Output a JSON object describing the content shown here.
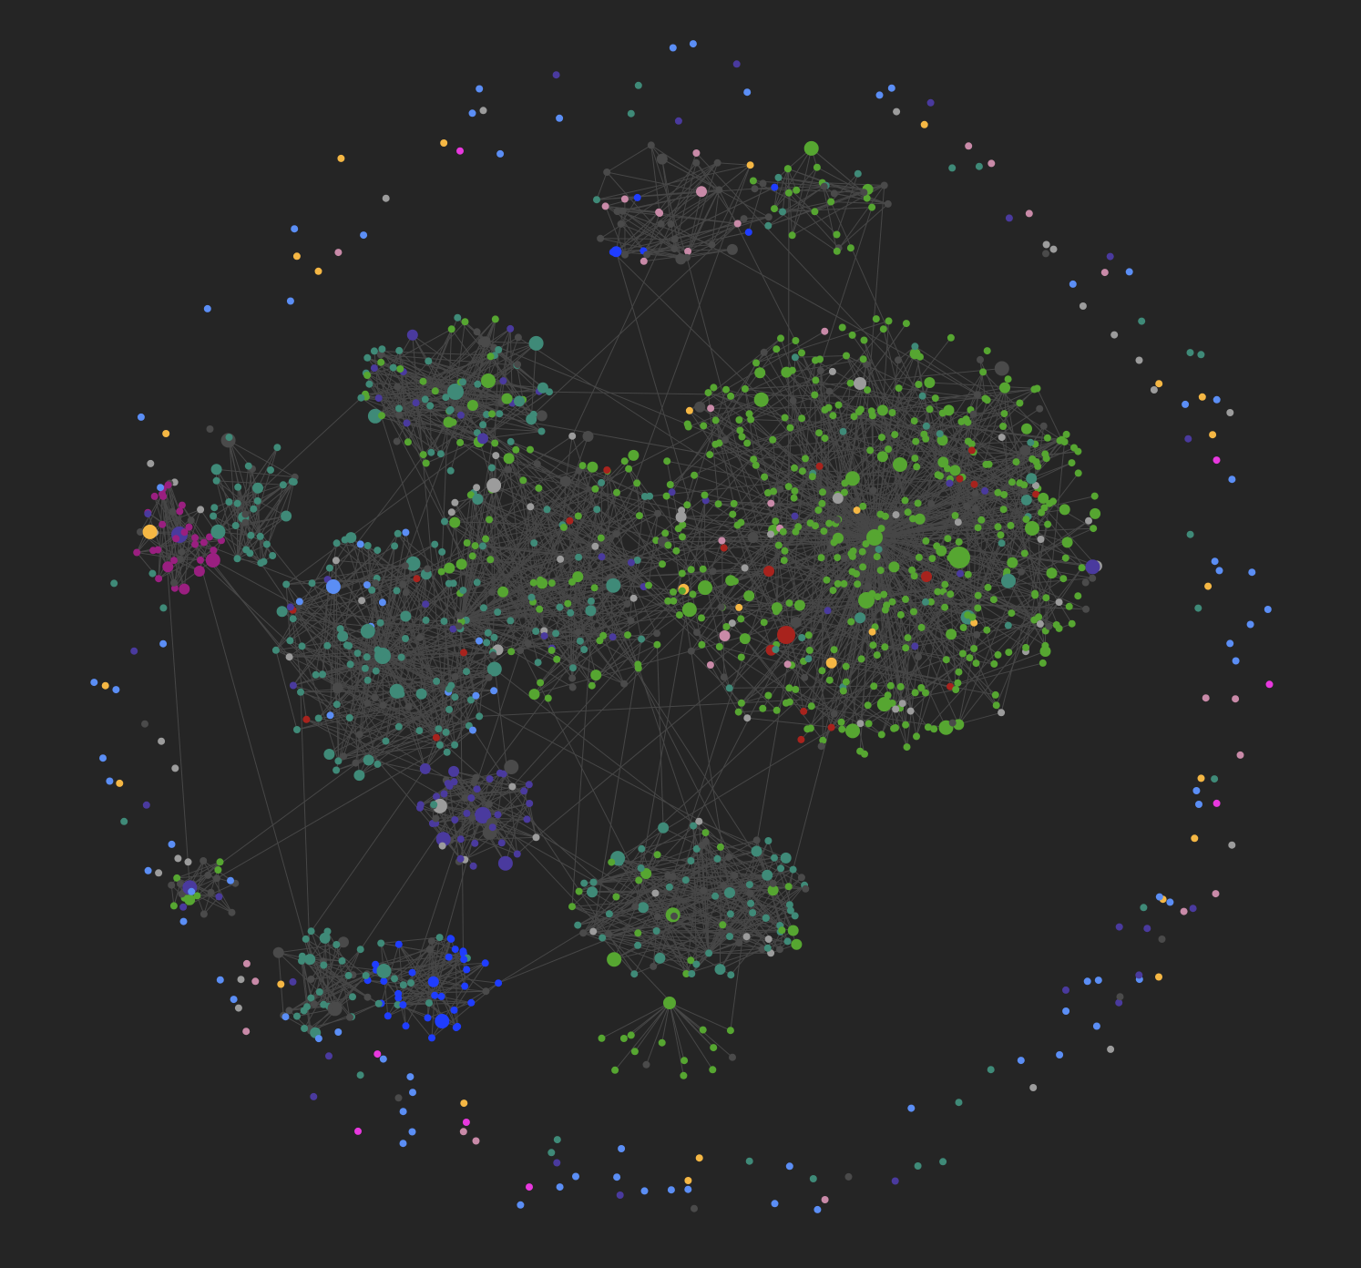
{
  "view": "graph",
  "colors": {
    "background": "#252525",
    "edge": "#474747",
    "green": "#56a631",
    "red": "#a8231d",
    "teal": "#3f8a78",
    "grey": "#9c9c9c",
    "dim": "#4a4a4a",
    "yellow": "#f5b744",
    "blue": "#1f3dff",
    "lightblue": "#5b8ef5",
    "purple": "#4a3a9e",
    "violet": "#7b5ce8",
    "magenta": "#9a1f80",
    "pink": "#c98aa8",
    "rose": "#c08a8a",
    "hotpink": "#e838de"
  }
}
